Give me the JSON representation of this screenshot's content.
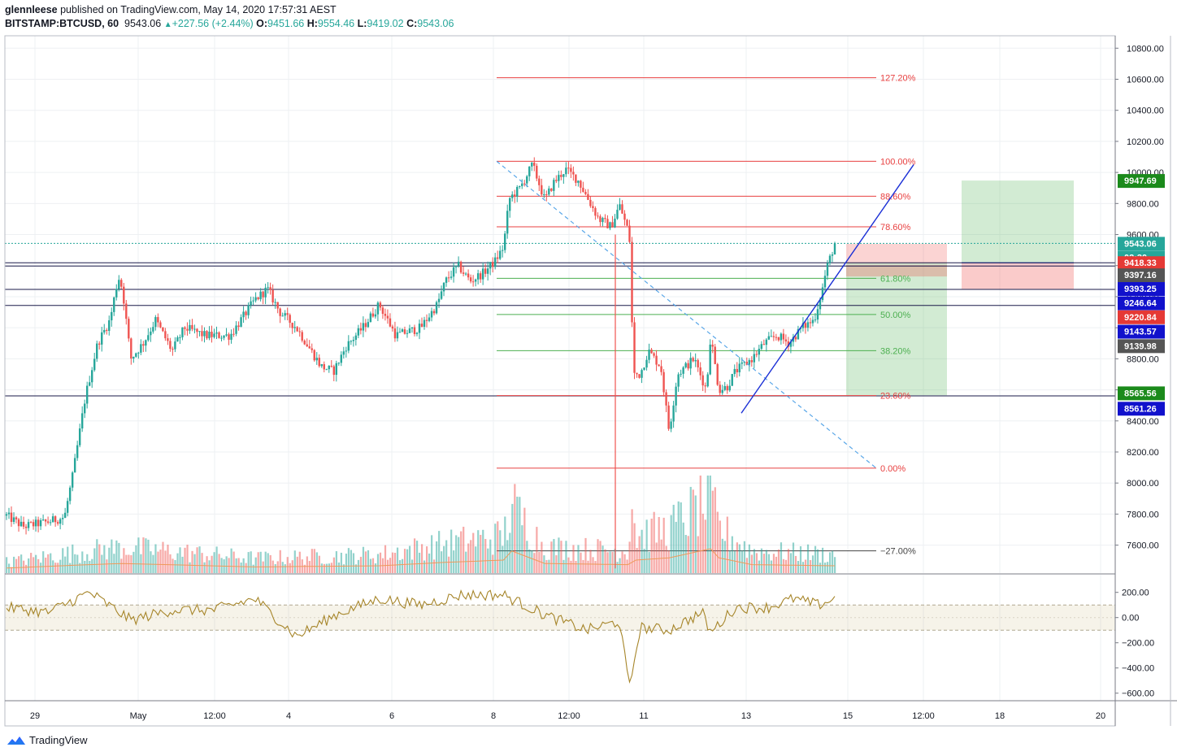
{
  "header": {
    "author": "glennleese",
    "published_text": "published on TradingView.com, May 14, 2020 17:57:31 AEST",
    "symbol": "BITSTAMP:BTCUSD, 60",
    "last": "9543.06",
    "change": "+227.56 (+2.44%)",
    "o_label": "O:",
    "o_value": "9451.66",
    "h_label": "H:",
    "h_value": "9554.46",
    "l_label": "L:",
    "l_value": "9419.02",
    "c_label": "C:",
    "c_value": "9543.06"
  },
  "footer": {
    "brand": "TradingView"
  },
  "colors": {
    "up": "#26a69a",
    "down": "#ef5350",
    "fib_red": "#e84040",
    "fib_green": "#4caf50",
    "trend_blue": "#1a2fd6",
    "dashed_blue": "#5aa7e8",
    "rsi": "#a68529"
  },
  "chart_data": {
    "type": "candlestick",
    "instrument": "BITSTAMP:BTCUSD",
    "interval": "60",
    "y_axis": {
      "range": [
        7420,
        10880
      ],
      "ticks": [
        7600,
        7800,
        8000,
        8200,
        8400,
        8600,
        8800,
        9000,
        9200,
        9400,
        9600,
        9800,
        10000,
        10200,
        10400,
        10600,
        10800
      ],
      "tick_labels": [
        "7600.00",
        "7800.00",
        "8000.00",
        "8200.00",
        "8400.00",
        "8600.00",
        "8800.00",
        "9000.00",
        "9200.00",
        "9400.00",
        "9600.00",
        "9800.00",
        "10000.00",
        "10200.00",
        "10400.00",
        "10600.00",
        "10800.00"
      ]
    },
    "x_axis": {
      "tick_labels": [
        "29",
        "May",
        "12:00",
        "4",
        "6",
        "8",
        "12:00",
        "11",
        "13",
        "15",
        "12:00",
        "18",
        "20"
      ]
    },
    "price_path": [
      [
        0,
        7790
      ],
      [
        0.02,
        7720
      ],
      [
        0.05,
        7750
      ],
      [
        0.07,
        7780
      ],
      [
        0.08,
        8050
      ],
      [
        0.095,
        8550
      ],
      [
        0.11,
        8900
      ],
      [
        0.125,
        9050
      ],
      [
        0.135,
        9330
      ],
      [
        0.14,
        9250
      ],
      [
        0.15,
        8800
      ],
      [
        0.165,
        8900
      ],
      [
        0.18,
        9050
      ],
      [
        0.2,
        8850
      ],
      [
        0.215,
        9000
      ],
      [
        0.24,
        8950
      ],
      [
        0.27,
        8950
      ],
      [
        0.3,
        9180
      ],
      [
        0.315,
        9250
      ],
      [
        0.33,
        9100
      ],
      [
        0.35,
        9000
      ],
      [
        0.38,
        8750
      ],
      [
        0.395,
        8720
      ],
      [
        0.41,
        8880
      ],
      [
        0.43,
        9000
      ],
      [
        0.45,
        9150
      ],
      [
        0.47,
        8950
      ],
      [
        0.5,
        9000
      ],
      [
        0.52,
        9150
      ],
      [
        0.53,
        9300
      ],
      [
        0.545,
        9400
      ],
      [
        0.56,
        9300
      ],
      [
        0.575,
        9350
      ],
      [
        0.59,
        9430
      ],
      [
        0.6,
        9520
      ],
      [
        0.607,
        9830
      ],
      [
        0.62,
        9900
      ],
      [
        0.635,
        10050
      ],
      [
        0.65,
        9820
      ],
      [
        0.66,
        9930
      ],
      [
        0.675,
        10020
      ],
      [
        0.69,
        9950
      ],
      [
        0.7,
        9850
      ],
      [
        0.715,
        9700
      ],
      [
        0.73,
        9650
      ],
      [
        0.74,
        9790
      ],
      [
        0.752,
        9600
      ],
      [
        0.757,
        8700
      ],
      [
        0.765,
        8700
      ],
      [
        0.775,
        8850
      ],
      [
        0.79,
        8750
      ],
      [
        0.8,
        8330
      ],
      [
        0.81,
        8700
      ],
      [
        0.83,
        8800
      ],
      [
        0.845,
        8600
      ],
      [
        0.85,
        8950
      ],
      [
        0.86,
        8600
      ],
      [
        0.87,
        8620
      ],
      [
        0.88,
        8720
      ],
      [
        0.9,
        8800
      ],
      [
        0.915,
        8900
      ],
      [
        0.93,
        8950
      ],
      [
        0.945,
        8900
      ],
      [
        0.96,
        9000
      ],
      [
        0.975,
        9050
      ],
      [
        0.985,
        9250
      ],
      [
        0.99,
        9380
      ],
      [
        1.0,
        9543
      ]
    ],
    "volume_path": [
      [
        0,
        0.15
      ],
      [
        0.1,
        0.3
      ],
      [
        0.14,
        0.35
      ],
      [
        0.3,
        0.2
      ],
      [
        0.45,
        0.25
      ],
      [
        0.53,
        0.4
      ],
      [
        0.6,
        0.5
      ],
      [
        0.61,
        0.9
      ],
      [
        0.65,
        0.35
      ],
      [
        0.75,
        0.3
      ],
      [
        0.755,
        1.0
      ],
      [
        0.76,
        0.5
      ],
      [
        0.8,
        0.6
      ],
      [
        0.85,
        1.0
      ],
      [
        0.86,
        0.6
      ],
      [
        0.9,
        0.3
      ],
      [
        1.0,
        0.25
      ]
    ],
    "rsi_path": [
      [
        0,
        80
      ],
      [
        0.05,
        40
      ],
      [
        0.1,
        200
      ],
      [
        0.15,
        -20
      ],
      [
        0.2,
        60
      ],
      [
        0.25,
        60
      ],
      [
        0.3,
        150
      ],
      [
        0.35,
        -150
      ],
      [
        0.4,
        30
      ],
      [
        0.45,
        150
      ],
      [
        0.5,
        100
      ],
      [
        0.55,
        180
      ],
      [
        0.6,
        180
      ],
      [
        0.65,
        20
      ],
      [
        0.7,
        -100
      ],
      [
        0.74,
        -30
      ],
      [
        0.752,
        -560
      ],
      [
        0.765,
        -80
      ],
      [
        0.8,
        -100
      ],
      [
        0.84,
        40
      ],
      [
        0.85,
        -120
      ],
      [
        0.88,
        80
      ],
      [
        0.92,
        80
      ],
      [
        0.95,
        150
      ],
      [
        0.98,
        100
      ],
      [
        1.0,
        150
      ]
    ],
    "fib_levels": [
      {
        "label": "127.20%",
        "price": 10610,
        "color": "#e84040"
      },
      {
        "label": "100.00%",
        "price": 10072,
        "color": "#e84040"
      },
      {
        "label": "88.60%",
        "price": 9847,
        "color": "#e84040"
      },
      {
        "label": "78.60%",
        "price": 9650,
        "color": "#e84040"
      },
      {
        "label": "61.80%",
        "price": 9318,
        "color": "#4caf50"
      },
      {
        "label": "50.00%",
        "price": 9085,
        "color": "#4caf50"
      },
      {
        "label": "38.20%",
        "price": 8852,
        "color": "#4caf50"
      },
      {
        "label": "23.60%",
        "price": 8563,
        "color": "#e84040"
      },
      {
        "label": "0.00%",
        "price": 8096,
        "color": "#e84040"
      },
      {
        "label": "−27.00%",
        "price": 7563,
        "color": "#444444"
      }
    ],
    "horizontal_lines": [
      9397.16,
      9246.64,
      9143.57,
      8561.26
    ],
    "price_tags": [
      {
        "value": "9947.69",
        "price": 9947.69,
        "color": "#1b8a1b"
      },
      {
        "value": "9543.06",
        "price": 9543.06,
        "color": "#26a69a"
      },
      {
        "value": "02:30",
        "price": 9453,
        "color": "#26a69a"
      },
      {
        "value": "9418.33",
        "price": 9418.33,
        "color": "#e53935"
      },
      {
        "value": "9397.16",
        "price": 9340,
        "color": "#555555"
      },
      {
        "value": "9393.25",
        "price": 9252,
        "color": "#1111cc"
      },
      {
        "value": "9246.64",
        "price": 9160,
        "color": "#1111cc"
      },
      {
        "value": "9220.84",
        "price": 9070,
        "color": "#e53935"
      },
      {
        "value": "9143.57",
        "price": 8977,
        "color": "#1111cc"
      },
      {
        "value": "9139.98",
        "price": 8884,
        "color": "#555555"
      },
      {
        "value": "8565.56",
        "price": 8580,
        "color": "#1b8a1b"
      },
      {
        "value": "8561.26",
        "price": 8481,
        "color": "#1111cc"
      }
    ],
    "rsi_axis": {
      "ticks": [
        200,
        0,
        -200,
        -400,
        -600
      ],
      "tick_labels": [
        "200.00",
        "0.00",
        "−200.00",
        "−400.00",
        "−600.00"
      ],
      "band": [
        -100,
        100
      ]
    },
    "series": [
      {
        "name": "BTCUSD",
        "values_from": "price_path"
      }
    ]
  }
}
